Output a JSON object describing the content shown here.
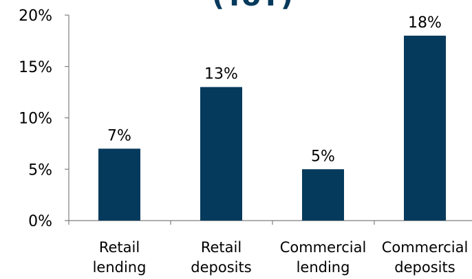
{
  "chart_data": {
    "type": "bar",
    "title": "(YoY)",
    "categories": [
      [
        "Retail",
        "lending"
      ],
      [
        "Retail",
        "deposits"
      ],
      [
        "Commercial",
        "lending"
      ],
      [
        "Commercial",
        "deposits"
      ]
    ],
    "values": [
      7,
      13,
      5,
      18
    ],
    "data_labels": [
      "7%",
      "13%",
      "5%",
      "18%"
    ],
    "ylim": [
      0,
      20
    ],
    "yticks": [
      "0%",
      "5%",
      "10%",
      "15%",
      "20%"
    ],
    "grid": false,
    "bar_color": "#063a5c"
  }
}
